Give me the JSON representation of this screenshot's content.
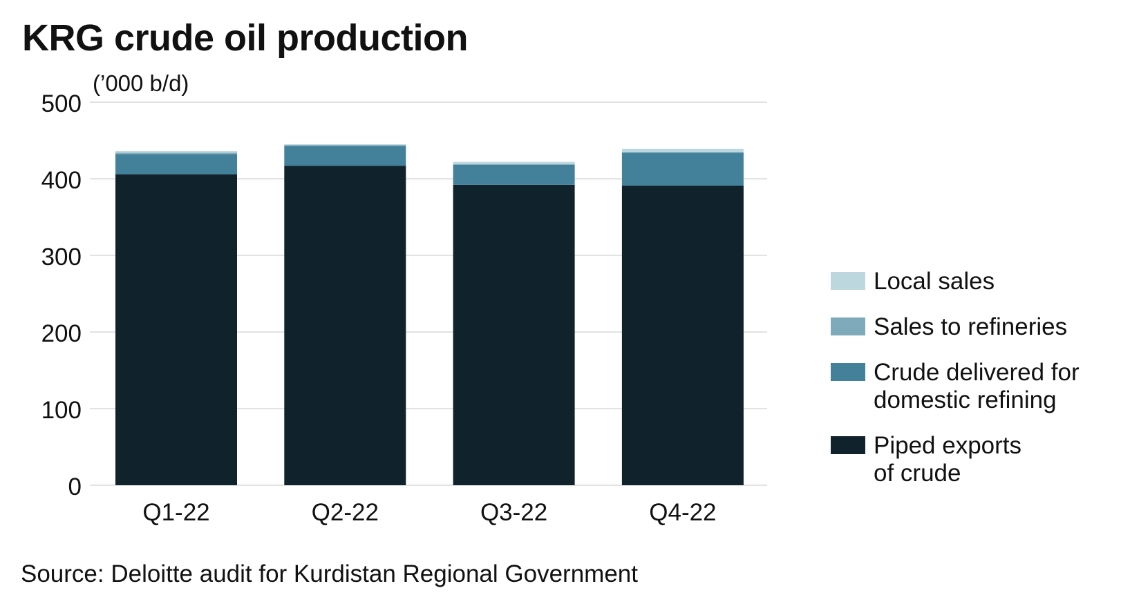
{
  "chart_data": {
    "type": "bar",
    "stacked": true,
    "title": "KRG crude oil production",
    "unit_label": "(’000 b/d)",
    "source": "Source: Deloitte audit for Kurdistan Regional Government",
    "categories": [
      "Q1-22",
      "Q2-22",
      "Q3-22",
      "Q4-22"
    ],
    "ylim": [
      0,
      500
    ],
    "yticks": [
      "0",
      "100",
      "200",
      "300",
      "400",
      "500"
    ],
    "grid": true,
    "legend_position": "right",
    "series": [
      {
        "name": "Piped exports of crude",
        "color": "#10232d",
        "values": [
          406,
          417,
          392,
          391
        ]
      },
      {
        "name": "Crude delivered for domestic refining",
        "color": "#43809a",
        "values": [
          26,
          26,
          26,
          43
        ]
      },
      {
        "name": "Sales to refineries",
        "color": "#7eaabb",
        "values": [
          2,
          1,
          1,
          1
        ]
      },
      {
        "name": "Local sales",
        "color": "#bdd7de",
        "values": [
          2,
          1,
          3,
          4
        ]
      }
    ]
  },
  "legend": {
    "items": [
      {
        "lines": [
          "Local sales"
        ],
        "color": "#bdd7de"
      },
      {
        "lines": [
          "Sales to refineries"
        ],
        "color": "#7eaabb"
      },
      {
        "lines": [
          "Crude delivered for",
          "domestic refining"
        ],
        "color": "#43809a"
      },
      {
        "lines": [
          "Piped exports",
          "of crude"
        ],
        "color": "#10232d"
      }
    ]
  }
}
